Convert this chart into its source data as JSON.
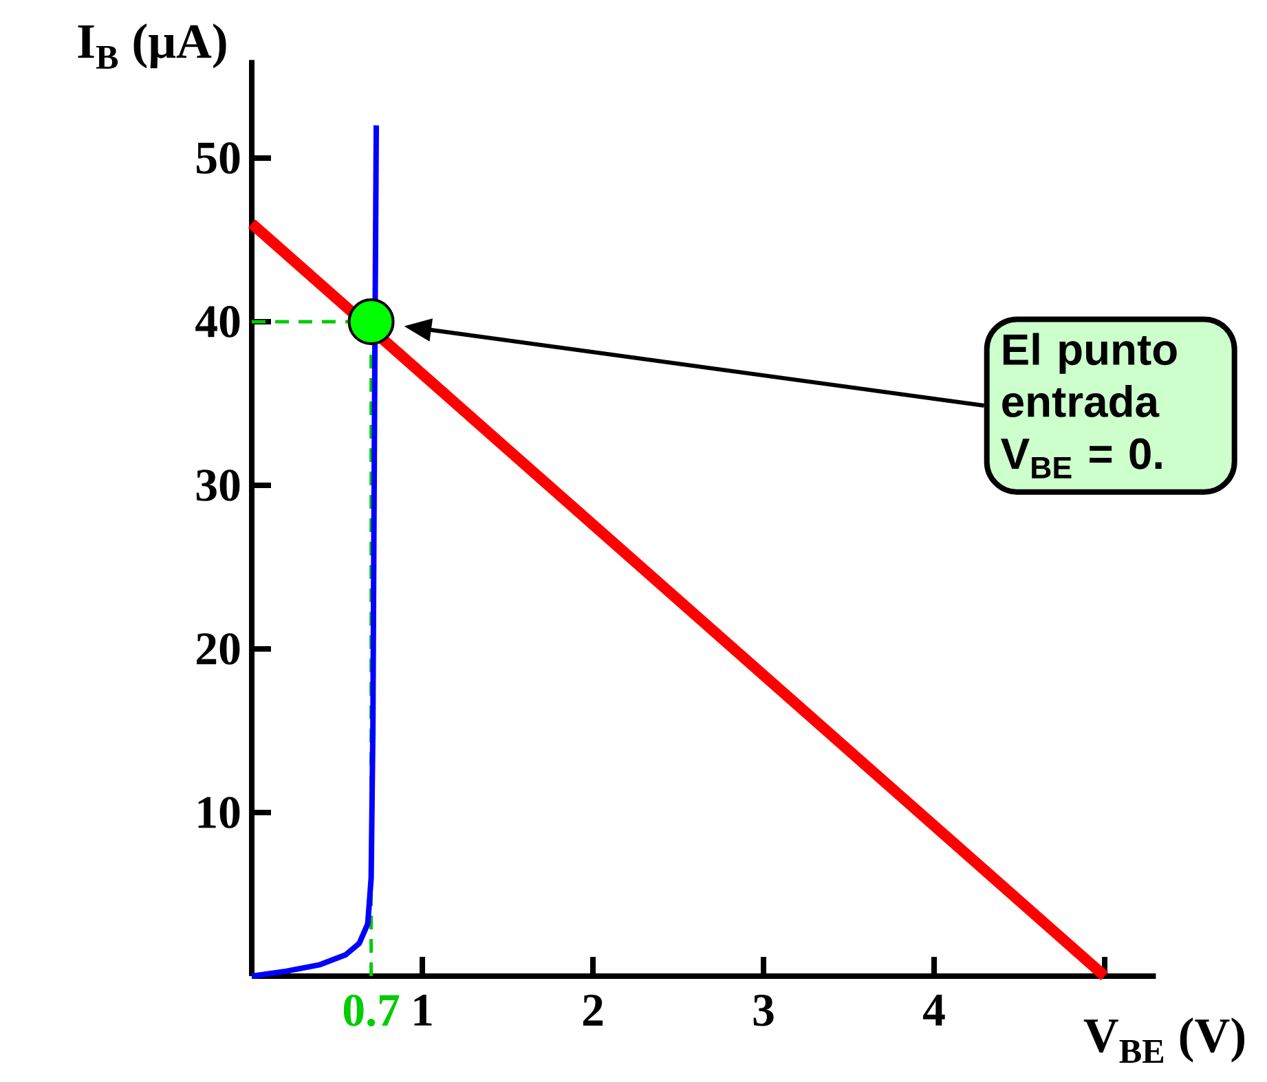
{
  "chart_data": {
    "type": "line",
    "xlabel": "V$_{BE}$ (V)",
    "ylabel": "I$_{B}$ (μA)",
    "xlim": [
      0,
      5.3
    ],
    "ylim": [
      0,
      56
    ],
    "xticks": [
      1,
      2,
      3,
      4,
      {
        "value": 5,
        "label": null
      }
    ],
    "yticks": [
      10,
      20,
      30,
      40,
      50
    ],
    "series": [
      {
        "color": "#0000ff",
        "marker": "none",
        "x": [
          0,
          0.2,
          0.4,
          0.55,
          0.63,
          0.68,
          0.7,
          0.71,
          0.72,
          0.73
        ],
        "values": [
          0,
          0.3,
          0.7,
          1.3,
          2.0,
          3.2,
          6,
          15,
          35,
          52
        ]
      },
      {
        "color": "#ff0000",
        "marker": "none",
        "x": [
          0,
          5
        ],
        "values": [
          46,
          0
        ]
      },
      {
        "type": "scatter",
        "color": "#00ff00",
        "marker": "circle",
        "x": [
          0.7
        ],
        "values": [
          40
        ]
      }
    ],
    "ref_lines": [
      {
        "axis": "x",
        "value": 0.7,
        "label": "0.7",
        "color": "#00cc00",
        "line_style": "dashed"
      },
      {
        "axis": "y",
        "value": 40,
        "color": "#00cc00",
        "line_style": "dashed"
      }
    ],
    "annotations": [
      "El punto entrada V$_{BE}$ = 0."
    ],
    "grid": false
  }
}
